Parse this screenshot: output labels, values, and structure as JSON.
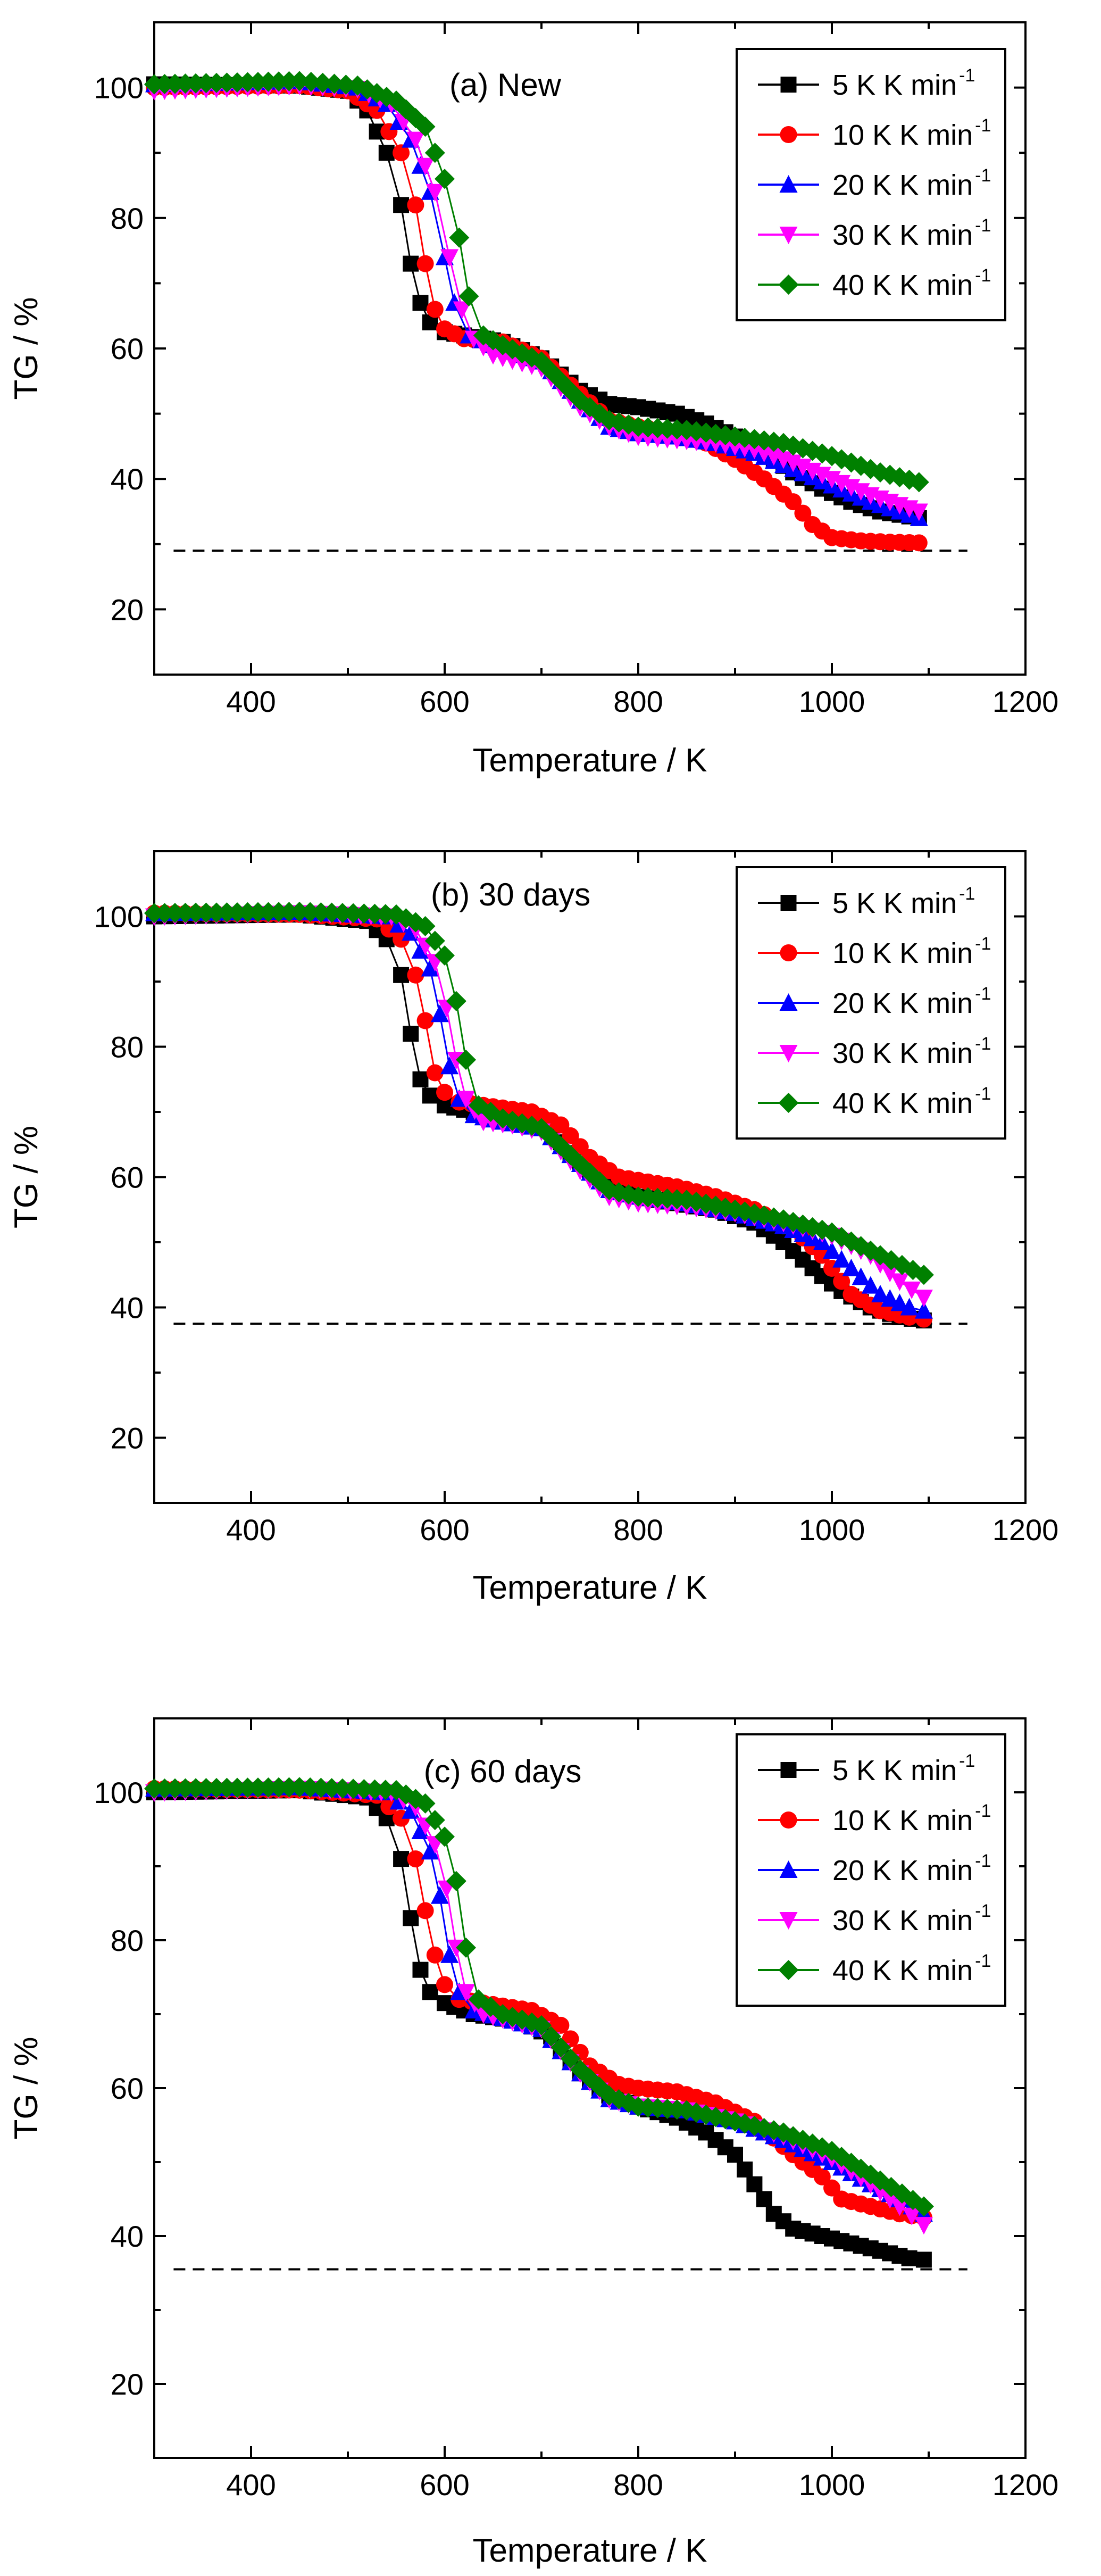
{
  "chart_data": [
    {
      "type": "scatter",
      "title": "(a) New",
      "xlabel": "Temperature / K",
      "ylabel": "TG / %",
      "xlim": [
        300,
        1200
      ],
      "ylim": [
        10,
        110
      ],
      "xticks": [
        "400",
        "600",
        "800",
        "1000",
        "1200"
      ],
      "yticks": [
        "20",
        "40",
        "60",
        "80",
        "100"
      ],
      "reference_line": 29,
      "legend": {
        "placement": "top-right",
        "unit": "K min",
        "superscript": "-1"
      },
      "series": [
        {
          "name": "5 K",
          "color": "#000000",
          "marker": "square",
          "x": [
            300,
            450,
            500,
            520,
            540,
            555,
            565,
            575,
            585,
            600,
            620,
            660,
            700,
            740,
            770,
            800,
            840,
            870,
            900,
            930,
            960,
            990,
            1020,
            1050,
            1090
          ],
          "y": [
            100.5,
            100.3,
            99.5,
            96.5,
            90,
            82,
            73,
            67,
            64,
            62.5,
            62,
            61,
            58.5,
            53.5,
            51.5,
            51,
            50,
            48.5,
            46.5,
            44,
            41,
            38.5,
            36.5,
            35,
            34
          ]
        },
        {
          "name": "10 K",
          "color": "#ff0000",
          "marker": "circle",
          "x": [
            300,
            450,
            500,
            530,
            555,
            570,
            580,
            590,
            600,
            620,
            660,
            700,
            740,
            770,
            800,
            840,
            870,
            900,
            930,
            960,
            980,
            1000,
            1030,
            1060,
            1090
          ],
          "y": [
            100,
            100.3,
            99.5,
            96.5,
            90,
            82,
            73,
            66,
            63,
            61.5,
            61,
            58.5,
            53,
            49,
            48,
            47,
            45.5,
            43,
            40,
            36.5,
            33,
            31,
            30.5,
            30.3,
            30.2
          ]
        },
        {
          "name": "20 K",
          "color": "#0000ff",
          "marker": "triangle-up",
          "x": [
            300,
            450,
            510,
            540,
            565,
            585,
            600,
            610,
            625,
            650,
            700,
            740,
            770,
            800,
            840,
            880,
            920,
            960,
            1000,
            1040,
            1090
          ],
          "y": [
            100.5,
            101,
            100,
            97.5,
            92,
            84,
            74,
            67,
            62,
            60.5,
            58,
            52,
            48,
            47,
            46.5,
            45.5,
            44,
            41.5,
            39,
            36.5,
            34
          ]
        },
        {
          "name": "30 K",
          "color": "#ff00ff",
          "marker": "triangle-down",
          "x": [
            300,
            450,
            510,
            545,
            570,
            590,
            605,
            618,
            630,
            650,
            700,
            740,
            770,
            800,
            840,
            880,
            920,
            960,
            1000,
            1040,
            1090
          ],
          "y": [
            99.5,
            100.3,
            99.8,
            97.5,
            92,
            84,
            74,
            66,
            61.5,
            59,
            57,
            51,
            48,
            46.5,
            46,
            45.5,
            44.5,
            42.5,
            40,
            37.5,
            35
          ]
        },
        {
          "name": "40 K",
          "color": "#008000",
          "marker": "diamond",
          "x": [
            300,
            450,
            510,
            550,
            580,
            600,
            615,
            625,
            640,
            660,
            700,
            740,
            770,
            800,
            850,
            900,
            950,
            1000,
            1050,
            1090
          ],
          "y": [
            100.5,
            101,
            100.3,
            98,
            94,
            86,
            77,
            68,
            62,
            60.5,
            58,
            52,
            49,
            48,
            47.5,
            46.5,
            45.5,
            43.5,
            41,
            39.5
          ]
        }
      ]
    },
    {
      "type": "scatter",
      "title": "(b) 30 days",
      "xlabel": "Temperature / K",
      "ylabel": "TG / %",
      "xlim": [
        300,
        1200
      ],
      "ylim": [
        10,
        110
      ],
      "xticks": [
        "400",
        "600",
        "800",
        "1000",
        "1200"
      ],
      "yticks": [
        "20",
        "40",
        "60",
        "80",
        "100"
      ],
      "reference_line": 37.5,
      "legend": {
        "placement": "top-right",
        "unit": "K min",
        "superscript": "-1"
      },
      "series": [
        {
          "name": "5 K",
          "color": "#000000",
          "marker": "square",
          "x": [
            300,
            450,
            520,
            540,
            555,
            565,
            575,
            585,
            600,
            630,
            680,
            710,
            740,
            770,
            800,
            840,
            880,
            920,
            950,
            980,
            1010,
            1040,
            1070,
            1095
          ],
          "y": [
            100,
            100.3,
            99.3,
            96.5,
            91,
            82,
            75,
            72.5,
            71,
            70,
            69,
            67,
            62,
            59,
            57,
            56,
            55,
            53,
            50,
            46,
            42.5,
            40,
            38.5,
            38
          ]
        },
        {
          "name": "10 K",
          "color": "#ff0000",
          "marker": "circle",
          "x": [
            300,
            450,
            530,
            555,
            570,
            580,
            590,
            600,
            615,
            640,
            690,
            720,
            750,
            780,
            800,
            840,
            880,
            920,
            960,
            990,
            1020,
            1050,
            1080,
            1095
          ],
          "y": [
            100.5,
            100.3,
            99.6,
            96.5,
            91,
            84,
            76,
            73,
            71.5,
            71,
            70,
            68,
            63,
            60,
            59.5,
            58.5,
            57,
            55,
            52,
            48,
            42,
            39.5,
            38.5,
            38.2
          ]
        },
        {
          "name": "20 K",
          "color": "#0000ff",
          "marker": "triangle-up",
          "x": [
            300,
            450,
            540,
            565,
            585,
            595,
            605,
            615,
            630,
            660,
            700,
            740,
            770,
            800,
            850,
            900,
            950,
            990,
            1020,
            1050,
            1080,
            1095
          ],
          "y": [
            100.5,
            100.7,
            100,
            97.5,
            92,
            85,
            77,
            72,
            69.5,
            68.5,
            67.5,
            62,
            58,
            57,
            56,
            54.5,
            52.5,
            50,
            46,
            42,
            40,
            39.5
          ]
        },
        {
          "name": "30 K",
          "color": "#ff00ff",
          "marker": "triangle-down",
          "x": [
            300,
            450,
            545,
            570,
            590,
            602,
            612,
            622,
            640,
            670,
            700,
            740,
            770,
            800,
            850,
            900,
            950,
            1000,
            1040,
            1070,
            1095
          ],
          "y": [
            100,
            100.5,
            100,
            98,
            93,
            86,
            78,
            72,
            68.5,
            68,
            67,
            61,
            57,
            56,
            55.5,
            54.5,
            53,
            51,
            48,
            44,
            41.5
          ]
        },
        {
          "name": "40 K",
          "color": "#008000",
          "marker": "diamond",
          "x": [
            300,
            450,
            550,
            580,
            600,
            612,
            622,
            635,
            660,
            700,
            740,
            770,
            800,
            850,
            900,
            950,
            1000,
            1050,
            1095
          ],
          "y": [
            100.5,
            100.7,
            100.3,
            98.5,
            94,
            87,
            78,
            71,
            69,
            67.5,
            62,
            58,
            57,
            56.5,
            55,
            53.5,
            51.5,
            48,
            45
          ]
        }
      ]
    },
    {
      "type": "scatter",
      "title": "(c) 60 days",
      "xlabel": "Temperature / K",
      "ylabel": "TG / %",
      "xlim": [
        300,
        1200
      ],
      "ylim": [
        10,
        110
      ],
      "xticks": [
        "400",
        "600",
        "800",
        "1000",
        "1200"
      ],
      "yticks": [
        "20",
        "40",
        "60",
        "80",
        "100"
      ],
      "reference_line": 35.5,
      "legend": {
        "placement": "top-right",
        "unit": "K min",
        "superscript": "-1"
      },
      "series": [
        {
          "name": "5 K",
          "color": "#000000",
          "marker": "square",
          "x": [
            300,
            450,
            520,
            540,
            555,
            565,
            575,
            585,
            600,
            630,
            680,
            710,
            740,
            770,
            800,
            840,
            870,
            900,
            920,
            940,
            960,
            990,
            1020,
            1050,
            1080,
            1095
          ],
          "y": [
            100,
            100.3,
            99.3,
            96.5,
            91,
            83,
            76,
            73,
            71.5,
            70,
            69,
            67,
            62,
            59,
            57.5,
            56,
            54,
            51,
            47,
            43,
            41,
            40,
            39,
            38,
            37,
            36.8
          ]
        },
        {
          "name": "10 K",
          "color": "#ff0000",
          "marker": "circle",
          "x": [
            300,
            450,
            530,
            555,
            570,
            580,
            590,
            600,
            615,
            640,
            690,
            720,
            750,
            780,
            800,
            840,
            880,
            920,
            960,
            990,
            1010,
            1040,
            1070,
            1095
          ],
          "y": [
            100.5,
            100.3,
            99.6,
            96.5,
            91,
            84,
            78,
            74,
            72,
            71.5,
            70.5,
            68.5,
            63,
            60.5,
            60,
            59.5,
            58,
            55.5,
            51,
            48,
            45,
            44,
            43,
            42.5
          ]
        },
        {
          "name": "20 K",
          "color": "#0000ff",
          "marker": "triangle-up",
          "x": [
            300,
            450,
            540,
            565,
            585,
            595,
            605,
            615,
            630,
            660,
            700,
            740,
            770,
            800,
            850,
            900,
            950,
            1000,
            1040,
            1070,
            1095
          ],
          "y": [
            100.5,
            100.7,
            100,
            97.5,
            92,
            86,
            78,
            73,
            70.5,
            69.5,
            68,
            62,
            58.5,
            57.5,
            57,
            55.5,
            53,
            50,
            47,
            45,
            43
          ]
        },
        {
          "name": "30 K",
          "color": "#ff00ff",
          "marker": "triangle-down",
          "x": [
            300,
            450,
            545,
            570,
            590,
            602,
            612,
            622,
            640,
            670,
            700,
            740,
            770,
            800,
            850,
            900,
            950,
            1000,
            1040,
            1070,
            1095
          ],
          "y": [
            100,
            100.5,
            100,
            98,
            93,
            87,
            79,
            73,
            70,
            69,
            68,
            62,
            58.5,
            57.5,
            57,
            55.5,
            53.5,
            50.5,
            47,
            44,
            41.5
          ]
        },
        {
          "name": "40 K",
          "color": "#008000",
          "marker": "diamond",
          "x": [
            300,
            450,
            550,
            580,
            600,
            612,
            622,
            635,
            660,
            700,
            740,
            770,
            800,
            850,
            900,
            950,
            1000,
            1050,
            1095
          ],
          "y": [
            100.5,
            100.7,
            100.3,
            98.5,
            94,
            88,
            79,
            72,
            70,
            68.5,
            62.5,
            59,
            57.5,
            57,
            55.5,
            54,
            51.5,
            47.5,
            44
          ]
        }
      ]
    }
  ]
}
